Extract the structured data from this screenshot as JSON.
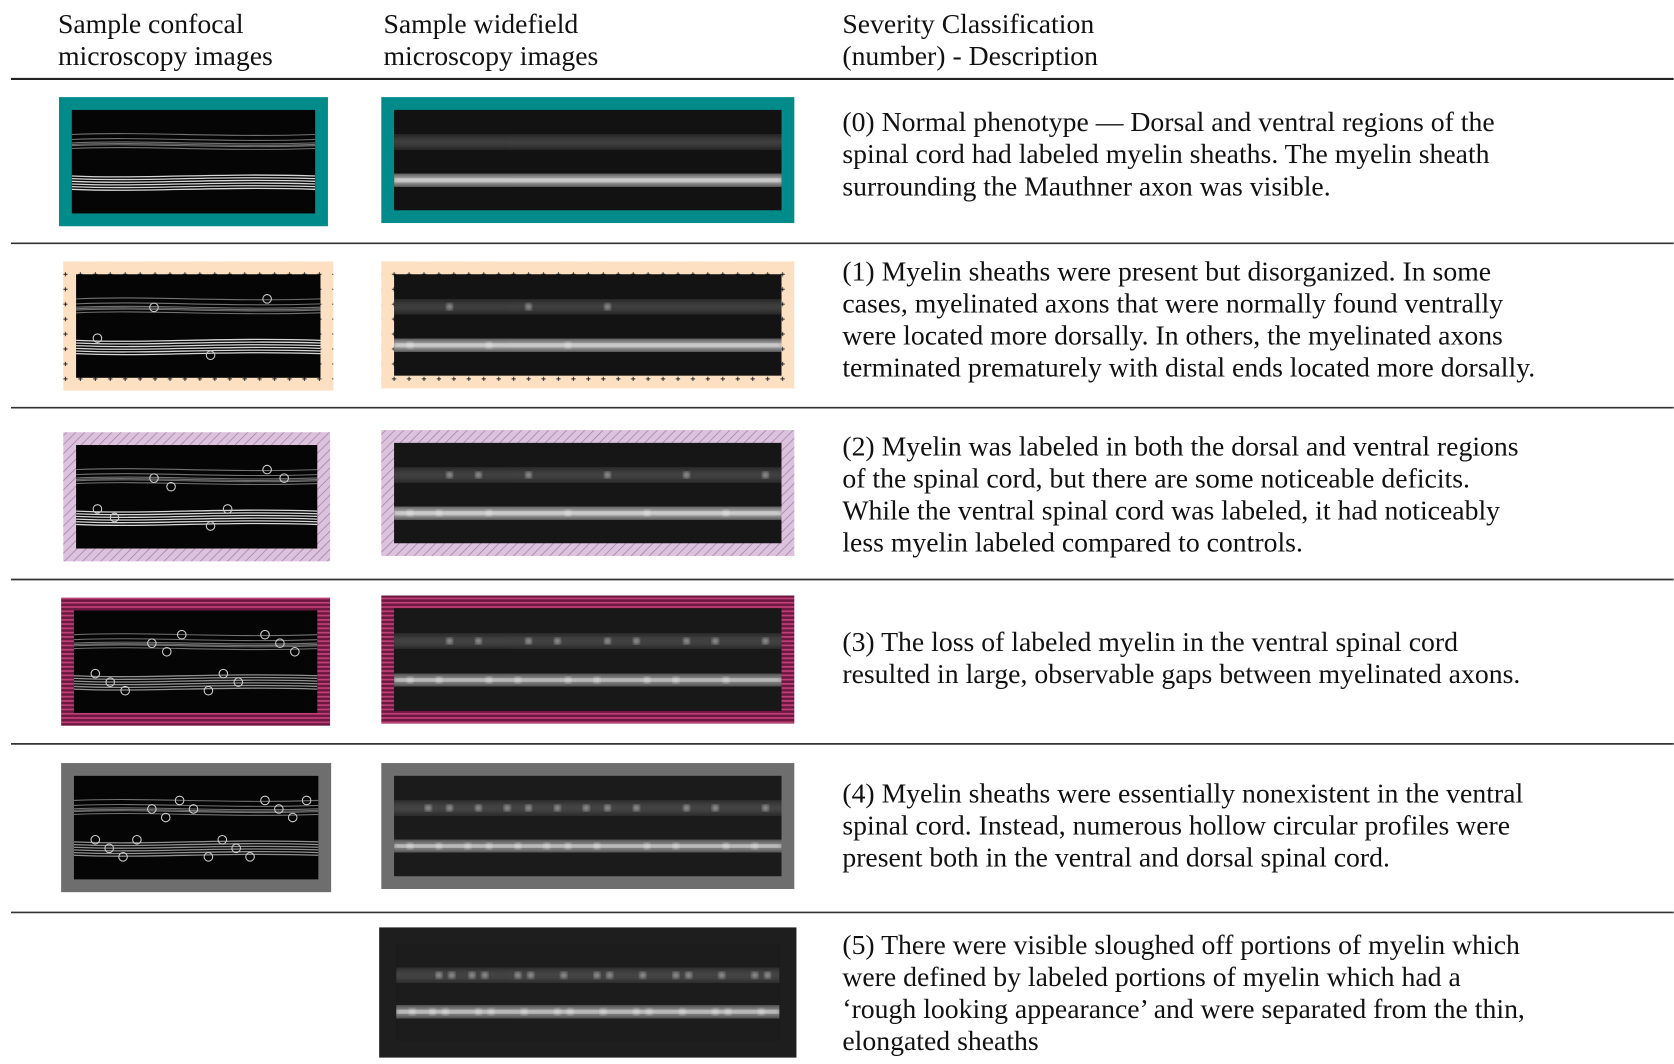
{
  "header": {
    "columns": [
      {
        "lines": [
          "Sample confocal",
          "microscopy images"
        ]
      },
      {
        "lines": [
          "Sample widefield",
          "microscopy images"
        ]
      },
      {
        "lines": [
          "Severity Classification",
          "(number) - Description"
        ]
      }
    ]
  },
  "rows": [
    {
      "lines": [
        "(0) Normal phenotype — Dorsal and ventral regions of the",
        "spinal cord had labeled myelin sheaths. The myelin sheath",
        "surrounding the Mauthner axon was visible."
      ]
    },
    {
      "lines": [
        "(1) Myelin sheaths were present but disorganized. In some",
        "cases, myelinated axons that were normally found ventrally",
        "were located more dorsally. In others, the myelinated axons",
        "terminated prematurely with distal ends located more dorsally."
      ]
    },
    {
      "lines": [
        "(2) Myelin was labeled in both the dorsal and ventral regions",
        "of the spinal cord, but there are some noticeable deficits.",
        "While the ventral spinal cord was labeled, it had noticeably",
        "less myelin labeled compared to controls."
      ]
    },
    {
      "lines": [
        "(3) The loss of labeled myelin in the ventral spinal cord",
        "resulted in large, observable gaps between myelinated axons."
      ]
    },
    {
      "lines": [
        "(4) Myelin sheaths were essentially nonexistent in the ventral",
        "spinal cord. Instead, numerous hollow circular profiles were",
        "present both in the ventral and dorsal spinal cord."
      ]
    },
    {
      "lines": [
        "(5) There were visible sloughed off portions of myelin which",
        "were defined by labeled portions of myelin which had a",
        "‘rough looking appearance’ and were separated from the thin,",
        "elongated sheaths"
      ]
    }
  ]
}
